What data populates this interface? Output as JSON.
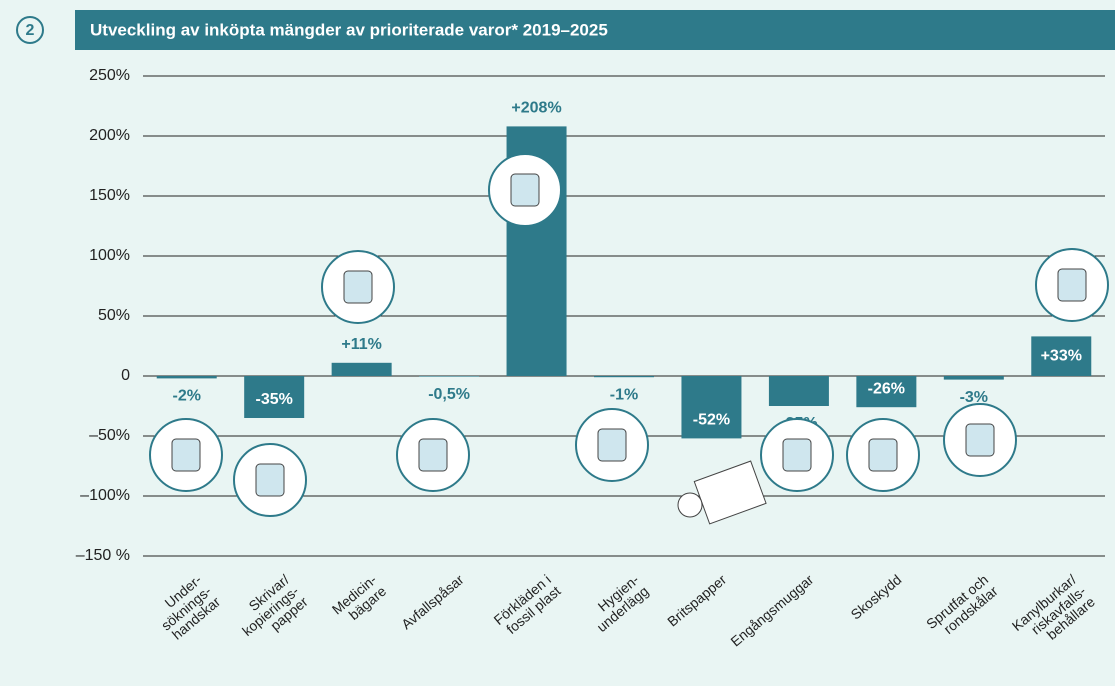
{
  "chart_data": {
    "type": "bar",
    "badge": "2",
    "title": "Utveckling av inköpta mängder av prioriterade varor* 2019–2025",
    "categories": [
      "Under-\nsöknings-\nhandskar",
      "Skrivar/\nkopierings-\npapper",
      "Medicin-\nbägare",
      "Avfallspåsar",
      "Förkläden i\nfossil plast",
      "Hygien-\nunderlägg",
      "Britspapper",
      "Engångsmuggar",
      "Skoskydd",
      "Sprutfat och\nrondskålar",
      "Kanylburkar/\nriskavfalls-\nbehållare"
    ],
    "values": [
      -2,
      -35,
      11,
      -0.5,
      208,
      -1,
      -52,
      -25,
      -26,
      -3,
      33
    ],
    "value_labels": [
      "-2%",
      "-35%",
      "+11%",
      "-0,5%",
      "+208%",
      "-1%",
      "-52%",
      "-25%",
      "-26%",
      "-3%",
      "+33%"
    ],
    "color": "#2e7a8a",
    "ylim": [
      -150,
      250
    ],
    "yticks": [
      {
        "value": -150,
        "label": "–150 %"
      },
      {
        "value": -100,
        "label": "–100%"
      },
      {
        "value": -50,
        "label": "–50%"
      },
      0,
      {
        "value": 50,
        "label": "50%"
      },
      {
        "value": 100,
        "label": "100%"
      },
      {
        "value": 150,
        "label": "150%"
      },
      {
        "value": 200,
        "label": "200%"
      },
      {
        "value": 250,
        "label": "250%"
      }
    ],
    "grid": true
  }
}
